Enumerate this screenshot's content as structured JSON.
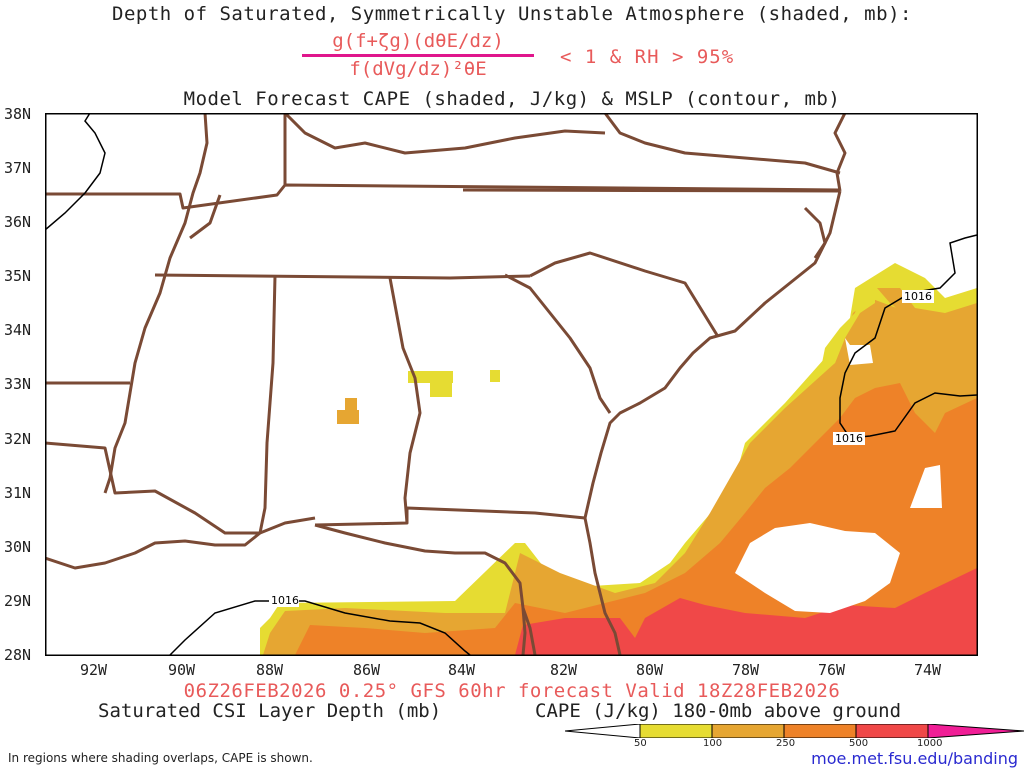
{
  "header": {
    "title": "Depth of Saturated, Symmetrically Unstable Atmosphere (shaded, mb):",
    "numerator": "g(f+ζg)(dθE/dz)",
    "denominator": "f(dVg/dz)²θE",
    "condition": "< 1 & RH > 95%",
    "subtitle": "Model Forecast CAPE (shaded, J/kg) & MSLP (contour, mb)"
  },
  "axes": {
    "lat_labels": [
      "38N",
      "37N",
      "36N",
      "35N",
      "34N",
      "33N",
      "32N",
      "31N",
      "30N",
      "29N",
      "28N"
    ],
    "lon_labels": [
      "92W",
      "90W",
      "88W",
      "86W",
      "84W",
      "82W",
      "80W",
      "78W",
      "76W",
      "74W"
    ]
  },
  "contours": {
    "label": "1016"
  },
  "footer": {
    "run_line": "06Z26FEB2026 0.25° GFS 60hr forecast Valid 18Z28FEB2026",
    "left_caption": "Saturated CSI Layer Depth (mb)",
    "right_caption": "CAPE (J/kg) 180-0mb above ground",
    "note": "In regions where shading overlaps, CAPE is shown.",
    "site": "moe.met.fsu.edu/banding"
  },
  "colorbar": {
    "ticks": [
      "50",
      "100",
      "250",
      "500",
      "1000"
    ],
    "colors": [
      "#ffffff",
      "#e6dc32",
      "#e6a632",
      "#ee8228",
      "#f04848",
      "#f01e96"
    ]
  }
}
